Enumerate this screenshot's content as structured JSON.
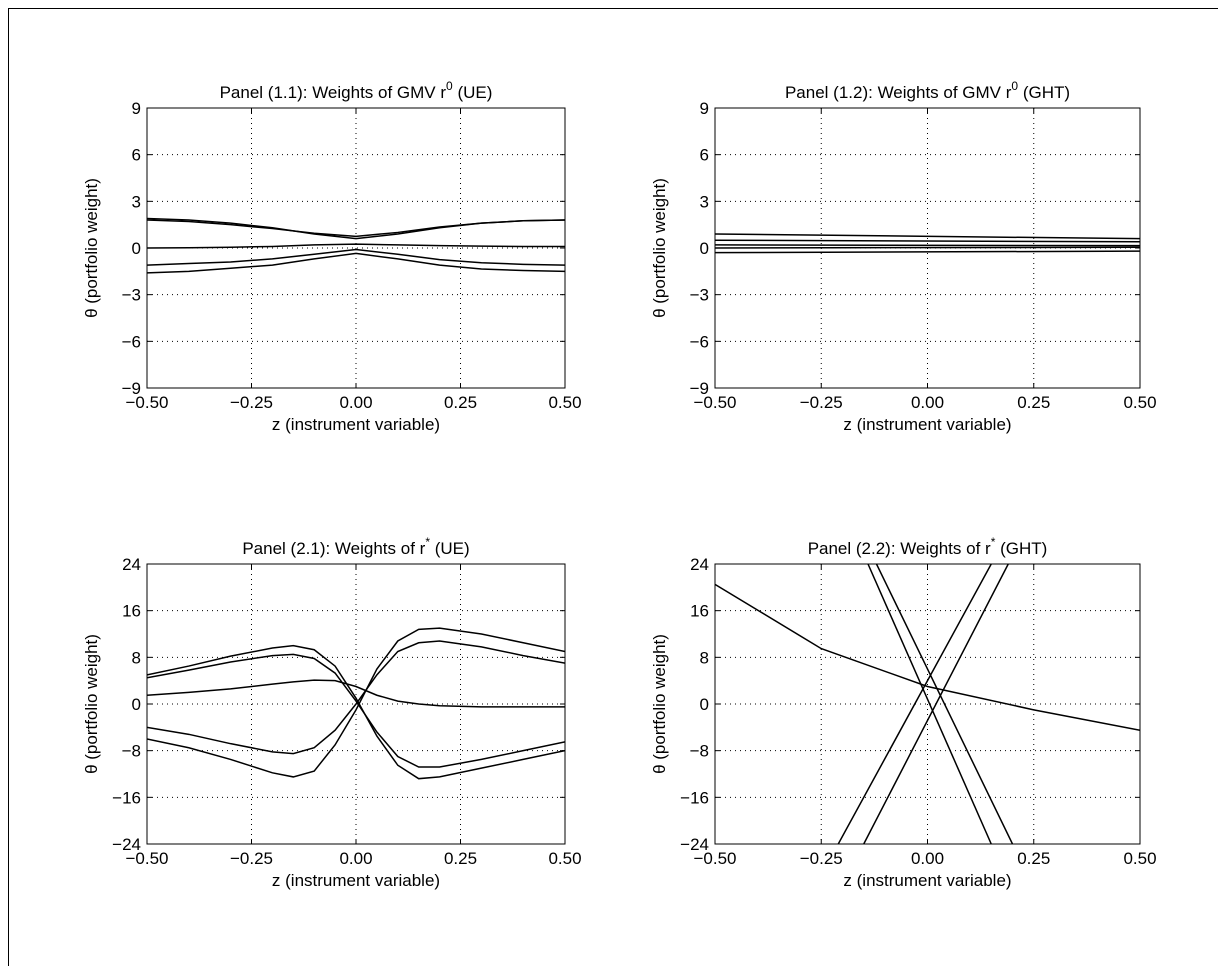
{
  "chart_data": [
    {
      "type": "line",
      "title": "Panel (1.1): Weights of GMV r",
      "title_superscript": "0",
      "title_suffix": " (UE)",
      "xlabel": "z (instrument variable)",
      "ylabel": "θ (portfolio weight)",
      "color": "#000000",
      "grid": true,
      "xlim": [
        -0.5,
        0.5
      ],
      "xticks": [
        {
          "value": -0.5,
          "label": "−0.50"
        },
        {
          "value": -0.25,
          "label": "−0.25"
        },
        {
          "value": 0,
          "label": "0.00"
        },
        {
          "value": 0.25,
          "label": "0.25"
        },
        {
          "value": 0.5,
          "label": "0.50"
        }
      ],
      "ylim": [
        -9,
        9
      ],
      "yticks": [
        {
          "value": -9,
          "label": "−9"
        },
        {
          "value": -6,
          "label": "−6"
        },
        {
          "value": -3,
          "label": "−3"
        },
        0,
        3,
        6,
        9
      ],
      "x": [
        -0.5,
        -0.4,
        -0.3,
        -0.2,
        -0.1,
        0,
        0.1,
        0.2,
        0.3,
        0.4,
        0.5
      ],
      "series": [
        {
          "values": [
            1.9,
            1.8,
            1.6,
            1.3,
            0.9,
            0.6,
            0.9,
            1.3,
            1.6,
            1.75,
            1.8
          ]
        },
        {
          "values": [
            1.8,
            1.7,
            1.5,
            1.25,
            0.95,
            0.75,
            1.0,
            1.35,
            1.6,
            1.75,
            1.8
          ]
        },
        {
          "values": [
            0,
            0.02,
            0.05,
            0.1,
            0.2,
            0.25,
            0.2,
            0.15,
            0.12,
            0.1,
            0.1
          ]
        },
        {
          "values": [
            -1.1,
            -1.0,
            -0.9,
            -0.7,
            -0.4,
            -0.1,
            -0.4,
            -0.75,
            -0.95,
            -1.05,
            -1.1
          ]
        },
        {
          "values": [
            -1.6,
            -1.5,
            -1.3,
            -1.1,
            -0.7,
            -0.35,
            -0.7,
            -1.1,
            -1.35,
            -1.45,
            -1.5
          ]
        }
      ]
    },
    {
      "type": "line",
      "title": "Panel (1.2): Weights of GMV r",
      "title_superscript": "0",
      "title_suffix": " (GHT)",
      "xlabel": "z (instrument variable)",
      "ylabel": "θ (portfolio weight)",
      "color": "#000000",
      "grid": true,
      "xlim": [
        -0.5,
        0.5
      ],
      "xticks": [
        {
          "value": -0.5,
          "label": "−0.50"
        },
        {
          "value": -0.25,
          "label": "−0.25"
        },
        {
          "value": 0,
          "label": "0.00"
        },
        {
          "value": 0.25,
          "label": "0.25"
        },
        {
          "value": 0.5,
          "label": "0.50"
        }
      ],
      "ylim": [
        -9,
        9
      ],
      "yticks": [
        {
          "value": -9,
          "label": "−9"
        },
        {
          "value": -6,
          "label": "−6"
        },
        {
          "value": -3,
          "label": "−3"
        },
        0,
        3,
        6,
        9
      ],
      "x": [
        -0.5,
        0.5
      ],
      "series": [
        {
          "values": [
            0.9,
            0.6
          ]
        },
        {
          "values": [
            0.5,
            0.4
          ]
        },
        {
          "values": [
            0.2,
            0.15
          ]
        },
        {
          "values": [
            0,
            0.05
          ]
        },
        {
          "values": [
            -0.3,
            -0.2
          ]
        }
      ]
    },
    {
      "type": "line",
      "title": "Panel (2.1): Weights of r",
      "title_superscript": "*",
      "title_suffix": " (UE)",
      "xlabel": "z (instrument variable)",
      "ylabel": "θ (portfolio weight)",
      "color": "#000000",
      "grid": true,
      "xlim": [
        -0.5,
        0.5
      ],
      "xticks": [
        {
          "value": -0.5,
          "label": "−0.50"
        },
        {
          "value": -0.25,
          "label": "−0.25"
        },
        {
          "value": 0,
          "label": "0.00"
        },
        {
          "value": 0.25,
          "label": "0.25"
        },
        {
          "value": 0.5,
          "label": "0.50"
        }
      ],
      "ylim": [
        -24,
        24
      ],
      "yticks": [
        {
          "value": -24,
          "label": "−24"
        },
        {
          "value": -16,
          "label": "−16"
        },
        {
          "value": -8,
          "label": "−8"
        },
        0,
        8,
        16,
        24
      ],
      "x": [
        -0.5,
        -0.4,
        -0.3,
        -0.2,
        -0.15,
        -0.1,
        -0.05,
        0,
        0.05,
        0.1,
        0.15,
        0.2,
        0.3,
        0.4,
        0.5
      ],
      "series": [
        {
          "values": [
            5,
            6.5,
            8.2,
            9.6,
            10,
            9.3,
            6.5,
            1,
            -5.5,
            -10.5,
            -12.8,
            -12.5,
            -11,
            -9.5,
            -8
          ]
        },
        {
          "values": [
            4.5,
            5.8,
            7.2,
            8.3,
            8.5,
            7.8,
            5.3,
            0.5,
            -4.8,
            -9,
            -10.8,
            -10.8,
            -9.5,
            -8,
            -6.5
          ]
        },
        {
          "values": [
            -4,
            -5.2,
            -6.8,
            -8.2,
            -8.5,
            -7.5,
            -4.5,
            0,
            5,
            9,
            10.5,
            10.8,
            9.8,
            8.3,
            7
          ]
        },
        {
          "values": [
            -6,
            -7.5,
            -9.5,
            -11.8,
            -12.5,
            -11.5,
            -7,
            -1,
            6,
            10.8,
            12.8,
            13,
            12,
            10.5,
            9
          ]
        },
        {
          "values": [
            1.5,
            2,
            2.6,
            3.4,
            3.8,
            4.1,
            4,
            3,
            1.5,
            0.5,
            0,
            -0.3,
            -0.5,
            -0.5,
            -0.5
          ]
        }
      ]
    },
    {
      "type": "line",
      "title": "Panel (2.2): Weights of r",
      "title_superscript": "*",
      "title_suffix": " (GHT)",
      "xlabel": "z (instrument variable)",
      "ylabel": "θ (portfolio weight)",
      "color": "#000000",
      "grid": true,
      "xlim": [
        -0.5,
        0.5
      ],
      "xticks": [
        {
          "value": -0.5,
          "label": "−0.50"
        },
        {
          "value": -0.25,
          "label": "−0.25"
        },
        {
          "value": 0,
          "label": "0.00"
        },
        {
          "value": 0.25,
          "label": "0.25"
        },
        {
          "value": 0.5,
          "label": "0.50"
        }
      ],
      "ylim": [
        -24,
        24
      ],
      "yticks": [
        {
          "value": -24,
          "label": "−24"
        },
        {
          "value": -16,
          "label": "−16"
        },
        {
          "value": -8,
          "label": "−8"
        },
        0,
        8,
        16,
        24
      ],
      "series": [
        {
          "x": [
            -0.5,
            -0.25,
            0,
            0.25,
            0.5
          ],
          "values": [
            20.5,
            9.5,
            3,
            -1,
            -4.5
          ]
        },
        {
          "x": [
            -0.14,
            0.15
          ],
          "values": [
            24,
            -24
          ]
        },
        {
          "x": [
            -0.12,
            0.2
          ],
          "values": [
            24,
            -24
          ]
        },
        {
          "x": [
            -0.21,
            0.15
          ],
          "values": [
            -24,
            24
          ]
        },
        {
          "x": [
            -0.15,
            0.19
          ],
          "values": [
            -24,
            24
          ]
        }
      ]
    }
  ]
}
